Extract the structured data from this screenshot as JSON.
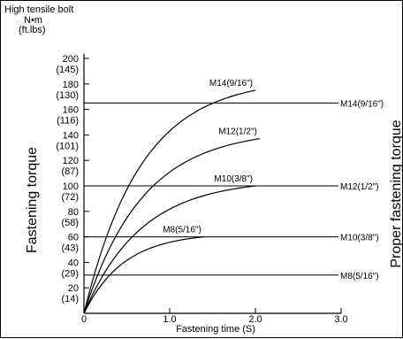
{
  "chart_data": {
    "type": "line",
    "header": {
      "line1": "High tensile bolt",
      "line2": "N•m",
      "line3": "(ft.lbs)"
    },
    "ylabel": "Fastening torque",
    "ylabel_right": "Proper fastening torque",
    "xlabel": "Fastening time (S)",
    "xlim": [
      0,
      3.0
    ],
    "ylim": [
      0,
      200
    ],
    "x_ticks": [
      {
        "value": 0,
        "label": "0"
      },
      {
        "value": 1.0,
        "label": "1.0"
      },
      {
        "value": 2.0,
        "label": "2.0"
      },
      {
        "value": 3.0,
        "label": "3.0"
      }
    ],
    "y_ticks": [
      {
        "value": 20,
        "nm": "20",
        "ftlbs": "(14)"
      },
      {
        "value": 40,
        "nm": "40",
        "ftlbs": "(29)"
      },
      {
        "value": 60,
        "nm": "60",
        "ftlbs": "(43)"
      },
      {
        "value": 80,
        "nm": "80",
        "ftlbs": "(58)"
      },
      {
        "value": 100,
        "nm": "100",
        "ftlbs": "(72)"
      },
      {
        "value": 120,
        "nm": "120",
        "ftlbs": "(87)"
      },
      {
        "value": 140,
        "nm": "140",
        "ftlbs": "(101)"
      },
      {
        "value": 160,
        "nm": "160",
        "ftlbs": "(116)"
      },
      {
        "value": 180,
        "nm": "180",
        "ftlbs": "(130)"
      },
      {
        "value": 200,
        "nm": "200",
        "ftlbs": "(145)"
      }
    ],
    "series": [
      {
        "name": "M14(9/16\")",
        "x_end": 2.0,
        "y_end": 175
      },
      {
        "name": "M12(1/2\")",
        "x_end": 2.05,
        "y_end": 137
      },
      {
        "name": "M10(3/8\")",
        "x_end": 2.0,
        "y_end": 100
      },
      {
        "name": "M8(5/16\")",
        "x_end": 1.4,
        "y_end": 60
      }
    ],
    "proper_torque": [
      {
        "label": "M14(9/16\")",
        "value": 165
      },
      {
        "label": "M12(1/2\")",
        "value": 100
      },
      {
        "label": "M10(3/8\")",
        "value": 60
      },
      {
        "label": "M8(5/16\")",
        "value": 30
      }
    ]
  }
}
